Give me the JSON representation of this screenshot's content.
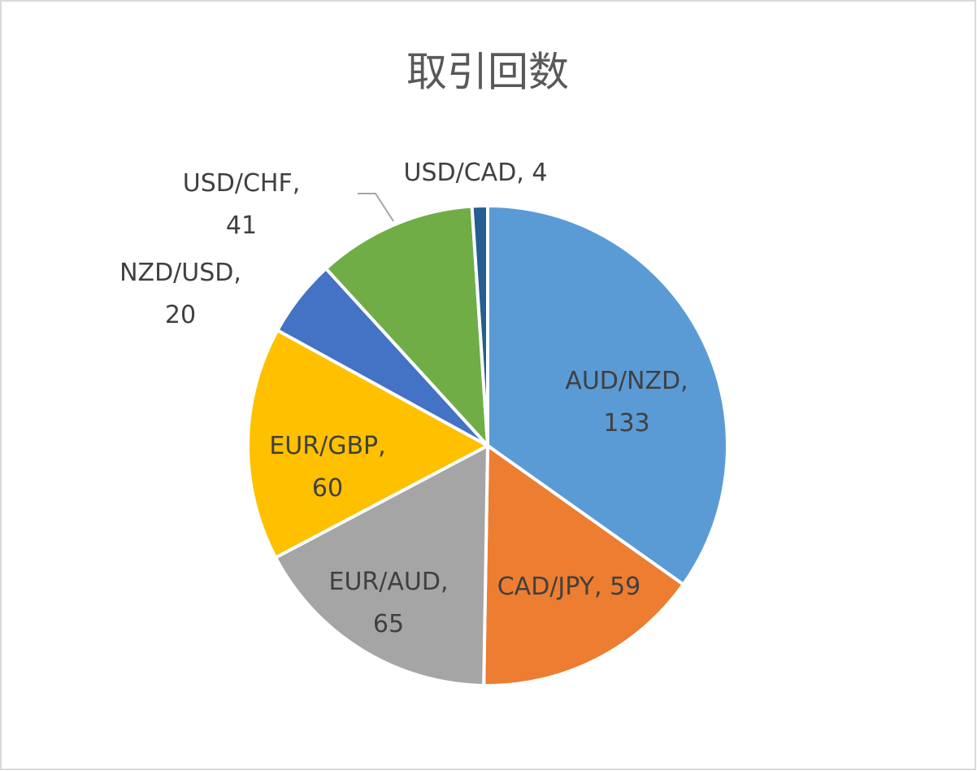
{
  "chart_data": {
    "type": "pie",
    "title": "取引回数",
    "categories": [
      "AUD/NZD",
      "CAD/JPY",
      "EUR/AUD",
      "EUR/GBP",
      "NZD/USD",
      "USD/CHF",
      "USD/CAD"
    ],
    "values": [
      133,
      59,
      65,
      60,
      20,
      41,
      4
    ],
    "value_labels": [
      "AUD/NZD, 133",
      "CAD/JPY, 59",
      "EUR/AUD, 65",
      "EUR/GBP, 60",
      "NZD/USD, 20",
      "USD/CHF, 41",
      "USD/CAD, 4"
    ],
    "colors": [
      "#5b9bd5",
      "#ed7d31",
      "#a5a5a5",
      "#ffc000",
      "#4472c4",
      "#70ad47",
      "#255e91"
    ]
  }
}
